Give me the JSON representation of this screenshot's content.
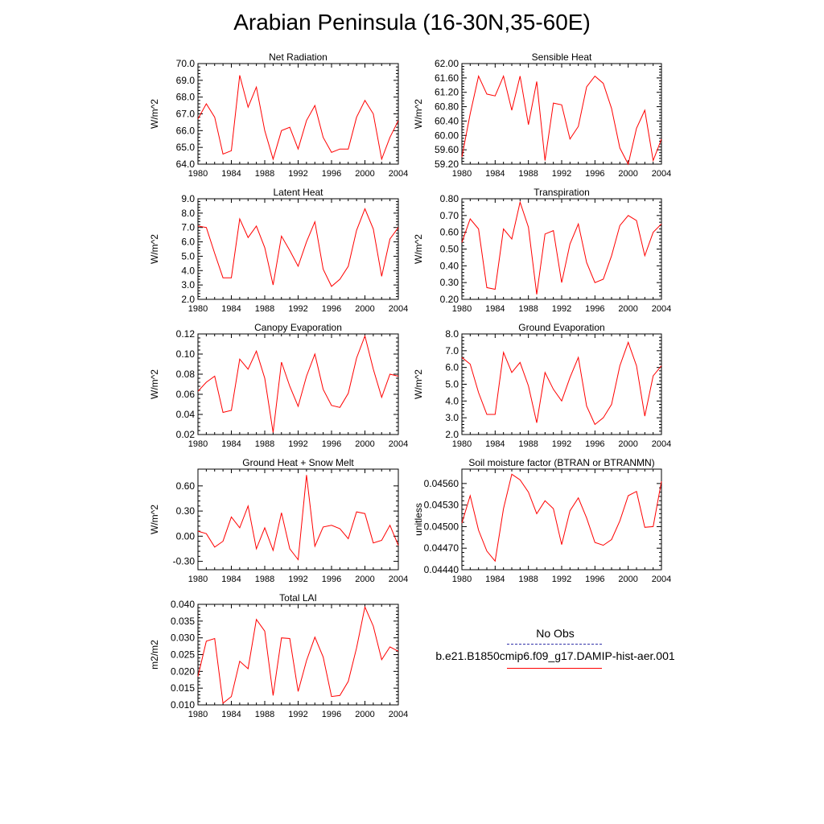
{
  "title": "Arabian Peninsula (16-30N,35-60E)",
  "legend": {
    "obs_label": "No Obs",
    "obs_color": "#3333aa",
    "model_label": "b.e21.B1850cmip6.f09_g17.DAMIP-hist-aer.001",
    "model_color": "#ff0000"
  },
  "chart_data": [
    {
      "type": "line",
      "title": "Net Radiation",
      "ylabel": "W/m^2",
      "xlim": [
        1980,
        2004
      ],
      "ylim": [
        64.0,
        70.0
      ],
      "xticks": [
        "1980",
        "1984",
        "1988",
        "1992",
        "1996",
        "2000",
        "2004"
      ],
      "yticks": [
        "64.0",
        "65.0",
        "66.0",
        "67.0",
        "68.0",
        "69.0",
        "70.0"
      ],
      "x": [
        1980,
        1981,
        1982,
        1983,
        1984,
        1985,
        1986,
        1987,
        1988,
        1989,
        1990,
        1991,
        1992,
        1993,
        1994,
        1995,
        1996,
        1997,
        1998,
        1999,
        2000,
        2001,
        2002,
        2003,
        2004
      ],
      "series": [
        {
          "values": [
            66.7,
            67.6,
            66.8,
            64.6,
            64.8,
            69.3,
            67.4,
            68.6,
            66.0,
            64.3,
            66.0,
            66.2,
            64.9,
            66.6,
            67.5,
            65.6,
            64.7,
            64.9,
            64.9,
            66.8,
            67.8,
            67.0,
            64.3,
            65.6,
            66.6
          ],
          "color": "#ff0000"
        }
      ]
    },
    {
      "type": "line",
      "title": "Sensible Heat",
      "ylabel": "W/m^2",
      "xlim": [
        1980,
        2004
      ],
      "ylim": [
        59.2,
        62.0
      ],
      "xticks": [
        "1980",
        "1984",
        "1988",
        "1992",
        "1996",
        "2000",
        "2004"
      ],
      "yticks": [
        "59.20",
        "59.60",
        "60.00",
        "60.40",
        "60.80",
        "61.20",
        "61.60",
        "62.00"
      ],
      "x": [
        1980,
        1981,
        1982,
        1983,
        1984,
        1985,
        1986,
        1987,
        1988,
        1989,
        1990,
        1991,
        1992,
        1993,
        1994,
        1995,
        1996,
        1997,
        1998,
        1999,
        2000,
        2001,
        2002,
        2003,
        2004
      ],
      "series": [
        {
          "values": [
            59.4,
            60.6,
            61.65,
            61.15,
            61.1,
            61.65,
            60.7,
            61.65,
            60.3,
            61.5,
            59.3,
            60.9,
            60.85,
            59.9,
            60.25,
            61.35,
            61.65,
            61.45,
            60.75,
            59.65,
            59.2,
            60.2,
            60.7,
            59.3,
            59.9
          ],
          "color": "#ff0000"
        }
      ]
    },
    {
      "type": "line",
      "title": "Latent Heat",
      "ylabel": "W/m^2",
      "xlim": [
        1980,
        2004
      ],
      "ylim": [
        2.0,
        9.0
      ],
      "xticks": [
        "1980",
        "1984",
        "1988",
        "1992",
        "1996",
        "2000",
        "2004"
      ],
      "yticks": [
        "2.0",
        "3.0",
        "4.0",
        "5.0",
        "6.0",
        "7.0",
        "8.0",
        "9.0"
      ],
      "x": [
        1980,
        1981,
        1982,
        1983,
        1984,
        1985,
        1986,
        1987,
        1988,
        1989,
        1990,
        1991,
        1992,
        1993,
        1994,
        1995,
        1996,
        1997,
        1998,
        1999,
        2000,
        2001,
        2002,
        2003,
        2004
      ],
      "series": [
        {
          "values": [
            7.1,
            7.0,
            5.2,
            3.5,
            3.5,
            7.6,
            6.3,
            7.1,
            5.6,
            3.0,
            6.4,
            5.4,
            4.3,
            6.0,
            7.4,
            4.1,
            2.9,
            3.4,
            4.3,
            6.8,
            8.3,
            6.9,
            3.6,
            6.2,
            7.0
          ],
          "color": "#ff0000"
        }
      ]
    },
    {
      "type": "line",
      "title": "Transpiration",
      "ylabel": "W/m^2",
      "xlim": [
        1980,
        2004
      ],
      "ylim": [
        0.2,
        0.8
      ],
      "xticks": [
        "1980",
        "1984",
        "1988",
        "1992",
        "1996",
        "2000",
        "2004"
      ],
      "yticks": [
        "0.20",
        "0.30",
        "0.40",
        "0.50",
        "0.60",
        "0.70",
        "0.80"
      ],
      "x": [
        1980,
        1981,
        1982,
        1983,
        1984,
        1985,
        1986,
        1987,
        1988,
        1989,
        1990,
        1991,
        1992,
        1993,
        1994,
        1995,
        1996,
        1997,
        1998,
        1999,
        2000,
        2001,
        2002,
        2003,
        2004
      ],
      "series": [
        {
          "values": [
            0.54,
            0.68,
            0.62,
            0.27,
            0.26,
            0.62,
            0.56,
            0.78,
            0.63,
            0.23,
            0.59,
            0.61,
            0.3,
            0.53,
            0.65,
            0.42,
            0.3,
            0.32,
            0.46,
            0.64,
            0.7,
            0.67,
            0.46,
            0.6,
            0.65
          ],
          "color": "#ff0000"
        }
      ]
    },
    {
      "type": "line",
      "title": "Canopy Evaporation",
      "ylabel": "W/m^2",
      "xlim": [
        1980,
        2004
      ],
      "ylim": [
        0.02,
        0.12
      ],
      "xticks": [
        "1980",
        "1984",
        "1988",
        "1992",
        "1996",
        "2000",
        "2004"
      ],
      "yticks": [
        "0.02",
        "0.04",
        "0.06",
        "0.08",
        "0.10",
        "0.12"
      ],
      "x": [
        1980,
        1981,
        1982,
        1983,
        1984,
        1985,
        1986,
        1987,
        1988,
        1989,
        1990,
        1991,
        1992,
        1993,
        1994,
        1995,
        1996,
        1997,
        1998,
        1999,
        2000,
        2001,
        2002,
        2003,
        2004
      ],
      "series": [
        {
          "values": [
            0.063,
            0.072,
            0.078,
            0.042,
            0.044,
            0.095,
            0.085,
            0.103,
            0.076,
            0.022,
            0.092,
            0.068,
            0.048,
            0.078,
            0.1,
            0.065,
            0.049,
            0.047,
            0.061,
            0.096,
            0.118,
            0.085,
            0.057,
            0.08,
            0.078
          ],
          "color": "#ff0000"
        }
      ]
    },
    {
      "type": "line",
      "title": "Ground Evaporation",
      "ylabel": "W/m^2",
      "xlim": [
        1980,
        2004
      ],
      "ylim": [
        2.0,
        8.0
      ],
      "xticks": [
        "1980",
        "1984",
        "1988",
        "1992",
        "1996",
        "2000",
        "2004"
      ],
      "yticks": [
        "2.0",
        "3.0",
        "4.0",
        "5.0",
        "6.0",
        "7.0",
        "8.0"
      ],
      "x": [
        1980,
        1981,
        1982,
        1983,
        1984,
        1985,
        1986,
        1987,
        1988,
        1989,
        1990,
        1991,
        1992,
        1993,
        1994,
        1995,
        1996,
        1997,
        1998,
        1999,
        2000,
        2001,
        2002,
        2003,
        2004
      ],
      "series": [
        {
          "values": [
            6.6,
            6.2,
            4.5,
            3.2,
            3.2,
            6.9,
            5.7,
            6.3,
            4.9,
            2.7,
            5.7,
            4.7,
            4.0,
            5.4,
            6.6,
            3.7,
            2.6,
            3.0,
            3.8,
            6.1,
            7.5,
            6.1,
            3.1,
            5.5,
            6.1
          ],
          "color": "#ff0000"
        }
      ]
    },
    {
      "type": "line",
      "title": "Ground Heat + Snow Melt",
      "ylabel": "W/m^2",
      "xlim": [
        1980,
        2004
      ],
      "ylim": [
        -0.4,
        0.8
      ],
      "xticks": [
        "1980",
        "1984",
        "1988",
        "1992",
        "1996",
        "2000",
        "2004"
      ],
      "yticks": [
        "-0.30",
        "0.00",
        "0.30",
        "0.60"
      ],
      "ytick_values": [
        -0.3,
        0.0,
        0.3,
        0.6
      ],
      "x": [
        1980,
        1981,
        1982,
        1983,
        1984,
        1985,
        1986,
        1987,
        1988,
        1989,
        1990,
        1991,
        1992,
        1993,
        1994,
        1995,
        1996,
        1997,
        1998,
        1999,
        2000,
        2001,
        2002,
        2003,
        2004
      ],
      "series": [
        {
          "values": [
            0.06,
            0.03,
            -0.13,
            -0.06,
            0.23,
            0.1,
            0.36,
            -0.15,
            0.1,
            -0.17,
            0.28,
            -0.15,
            -0.28,
            0.73,
            -0.12,
            0.11,
            0.13,
            0.09,
            -0.03,
            0.29,
            0.27,
            -0.08,
            -0.05,
            0.13,
            -0.11
          ],
          "color": "#ff0000"
        }
      ]
    },
    {
      "type": "line",
      "title": "Soil moisture factor (BTRAN or BTRANMN)",
      "ylabel": "unitless",
      "xlim": [
        1980,
        2004
      ],
      "ylim": [
        0.0444,
        0.0458
      ],
      "xticks": [
        "1980",
        "1984",
        "1988",
        "1992",
        "1996",
        "2000",
        "2004"
      ],
      "yticks": [
        "0.04440",
        "0.04470",
        "0.04500",
        "0.04530",
        "0.04560"
      ],
      "ytick_values": [
        0.0444,
        0.0447,
        0.045,
        0.0453,
        0.0456
      ],
      "x": [
        1980,
        1981,
        1982,
        1983,
        1984,
        1985,
        1986,
        1987,
        1988,
        1989,
        1990,
        1991,
        1992,
        1993,
        1994,
        1995,
        1996,
        1997,
        1998,
        1999,
        2000,
        2001,
        2002,
        2003,
        2004
      ],
      "series": [
        {
          "values": [
            0.04505,
            0.04543,
            0.04495,
            0.04466,
            0.04452,
            0.04525,
            0.04573,
            0.04565,
            0.04548,
            0.04518,
            0.04536,
            0.04525,
            0.04475,
            0.04522,
            0.0454,
            0.04512,
            0.04478,
            0.04474,
            0.04482,
            0.04508,
            0.04543,
            0.04549,
            0.04499,
            0.045,
            0.04563
          ],
          "color": "#ff0000"
        }
      ]
    },
    {
      "type": "line",
      "title": "Total LAI",
      "ylabel": "m2/m2",
      "xlim": [
        1980,
        2004
      ],
      "ylim": [
        0.01,
        0.04
      ],
      "xticks": [
        "1980",
        "1984",
        "1988",
        "1992",
        "1996",
        "2000",
        "2004"
      ],
      "yticks": [
        "0.010",
        "0.015",
        "0.020",
        "0.025",
        "0.030",
        "0.035",
        "0.040"
      ],
      "x": [
        1980,
        1981,
        1982,
        1983,
        1984,
        1985,
        1986,
        1987,
        1988,
        1989,
        1990,
        1991,
        1992,
        1993,
        1994,
        1995,
        1996,
        1997,
        1998,
        1999,
        2000,
        2001,
        2002,
        2003,
        2004
      ],
      "series": [
        {
          "values": [
            0.0185,
            0.029,
            0.0298,
            0.0105,
            0.0125,
            0.023,
            0.0208,
            0.0355,
            0.032,
            0.0128,
            0.03,
            0.0298,
            0.014,
            0.0232,
            0.0302,
            0.0243,
            0.0125,
            0.0128,
            0.017,
            0.027,
            0.0392,
            0.0335,
            0.0235,
            0.0273,
            0.026
          ],
          "color": "#ff0000"
        }
      ]
    }
  ]
}
